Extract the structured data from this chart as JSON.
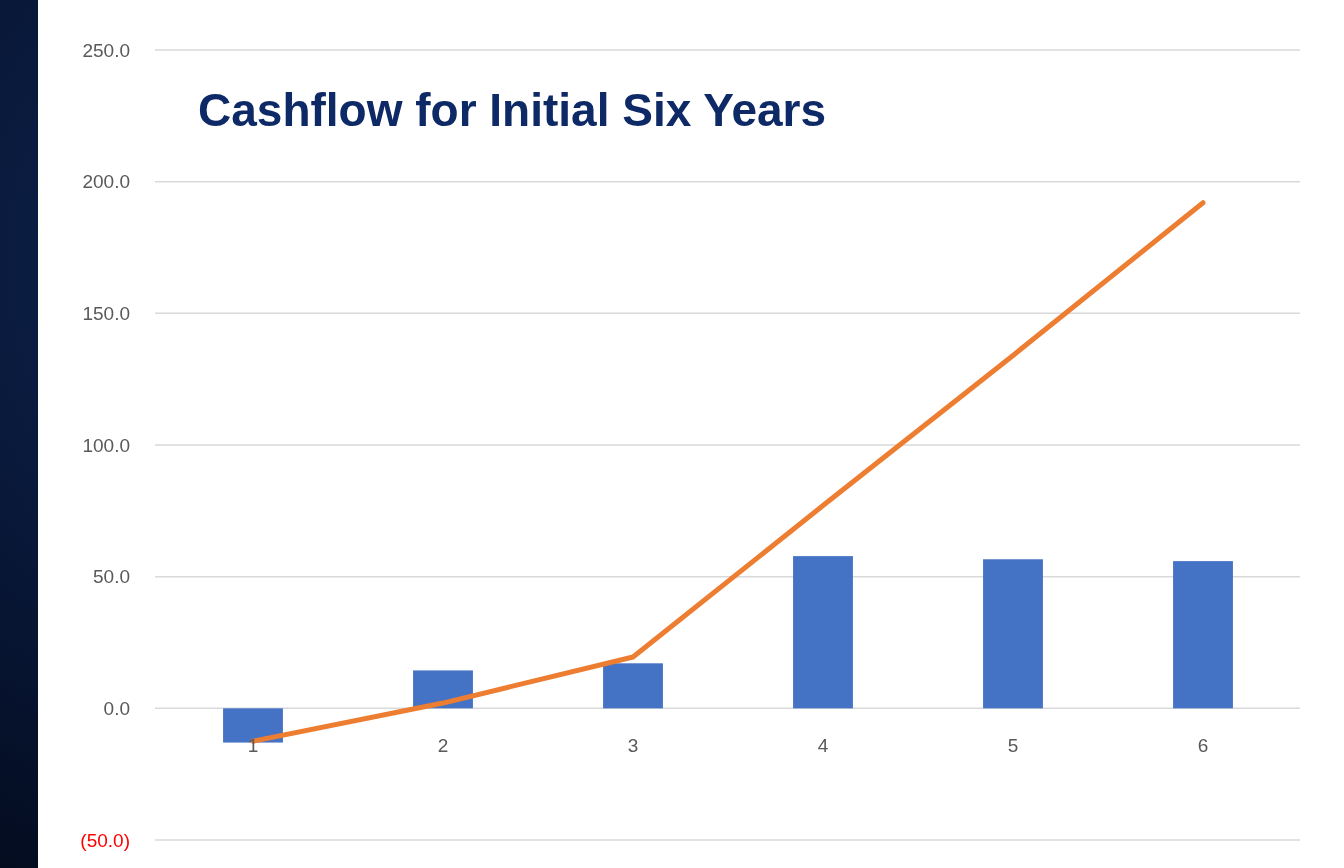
{
  "chart_data": {
    "type": "bar",
    "title": "Cashflow for Initial Six Years",
    "categories": [
      "1",
      "2",
      "3",
      "4",
      "5",
      "6"
    ],
    "series": [
      {
        "color": "#4472c4",
        "values": [
          -13,
          14.4,
          17.1,
          57.8,
          56.6,
          55.9
        ]
      },
      {
        "type": "line",
        "color": "#ed7d31",
        "values": [
          -12.5,
          2,
          19.5,
          77,
          134,
          192
        ]
      }
    ],
    "ylim": [
      -50,
      250
    ],
    "yticks": [
      {
        "value": -50,
        "label": "(50.0)"
      },
      {
        "value": 0,
        "label": "0.0"
      },
      {
        "value": 50,
        "label": "50.0"
      },
      {
        "value": 100,
        "label": "100.0"
      },
      {
        "value": 150,
        "label": "150.0"
      },
      {
        "value": 200,
        "label": "200.0"
      },
      {
        "value": 250,
        "label": "250.0"
      }
    ],
    "grid": "y",
    "marker": "none",
    "line_style": "solid"
  }
}
